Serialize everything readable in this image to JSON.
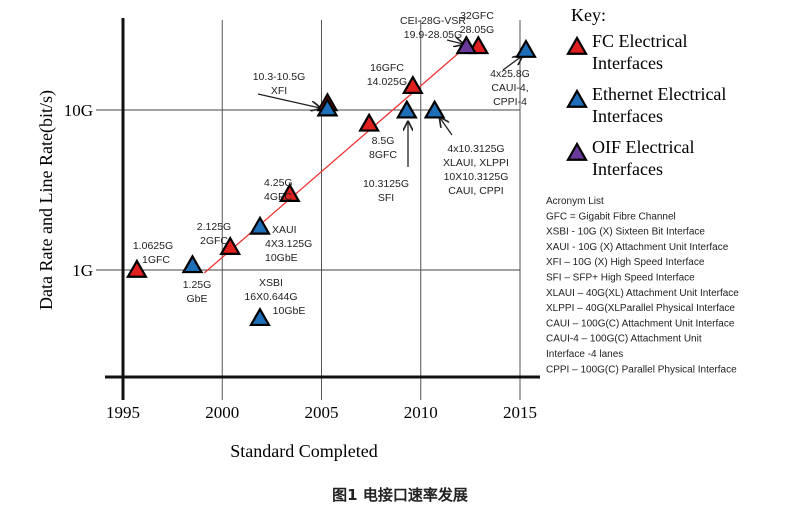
{
  "chart_data": {
    "type": "scatter",
    "title": "",
    "xlabel": "Standard Completed",
    "ylabel": "Data Rate and Line Rate(bit/s)",
    "x_scale": "linear",
    "y_scale": "log",
    "xlim": [
      1994,
      2016
    ],
    "ylim": [
      0.21,
      37
    ],
    "x_ticks": [
      1995,
      2000,
      2005,
      2010,
      2015
    ],
    "x_tick_labels": [
      "1995",
      "2000",
      "2005",
      "2010",
      "2015"
    ],
    "y_ticks": [
      1,
      10
    ],
    "y_tick_labels": [
      "1G",
      "10G"
    ],
    "grid": true,
    "colors": {
      "fc": "#e0201f",
      "ethernet": "#1f6fb8",
      "oif": "#6a3a9a",
      "trend": "#ee3333"
    },
    "series": [
      {
        "name": "FC Electrical Interfaces",
        "color_key": "fc",
        "points": [
          {
            "x": 1995.7,
            "y": 1.0
          },
          {
            "x": 2000.4,
            "y": 1.39
          },
          {
            "x": 2003.4,
            "y": 2.98
          },
          {
            "x": 2005.3,
            "y": 11.0
          },
          {
            "x": 2007.4,
            "y": 8.2
          },
          {
            "x": 2009.6,
            "y": 14.1
          },
          {
            "x": 2012.9,
            "y": 25
          }
        ]
      },
      {
        "name": "Ethernet Electrical Interfaces",
        "color_key": "ethernet",
        "points": [
          {
            "x": 1998.5,
            "y": 1.07
          },
          {
            "x": 2001.9,
            "y": 1.86
          },
          {
            "x": 2001.9,
            "y": 0.5
          },
          {
            "x": 2005.3,
            "y": 10.2
          },
          {
            "x": 2009.3,
            "y": 9.9
          },
          {
            "x": 2010.7,
            "y": 9.9
          },
          {
            "x": 2015.3,
            "y": 23.7
          }
        ]
      },
      {
        "name": "OIF Electrical Interfaces",
        "color_key": "oif",
        "points": [
          {
            "x": 2012.3,
            "y": 25
          }
        ]
      }
    ],
    "trend_line": [
      {
        "x": 1999.1,
        "y": 0.96
      },
      {
        "x": 2012.3,
        "y": 25
      }
    ],
    "annotations": [
      {
        "lines": [
          "1.0625G",
          "1GFC"
        ]
      },
      {
        "lines": [
          "1.25G",
          "GbE"
        ]
      },
      {
        "lines": [
          "2.125G",
          "2GFC"
        ]
      },
      {
        "lines": [
          "XAUI",
          "4X3.125G",
          "10GbE"
        ]
      },
      {
        "lines": [
          "4.25G",
          "4GFC"
        ]
      },
      {
        "lines": [
          "XSBI",
          "16X0.644G",
          "10GbE"
        ]
      },
      {
        "lines": [
          "10.3-10.5G",
          "XFI"
        ]
      },
      {
        "lines": [
          "8.5G",
          "8GFC"
        ]
      },
      {
        "lines": [
          "10.3125G",
          "SFI"
        ]
      },
      {
        "lines": [
          "16GFC",
          "14.025G"
        ]
      },
      {
        "lines": [
          "4x10.3125G",
          "XLAUI, XLPPI",
          "10X10.3125G",
          "CAUI, CPPI"
        ]
      },
      {
        "lines": [
          "CEI-28G-VSR",
          "19.9-28.05G"
        ]
      },
      {
        "lines": [
          "32GFC",
          "28.05G"
        ]
      },
      {
        "lines": [
          "4x25.8G",
          "CAUI-4,",
          "CPPI-4"
        ]
      }
    ],
    "legend": {
      "placement": "right",
      "title": "Key:",
      "entries": [
        {
          "lines": [
            "FC Electrical",
            "Interfaces"
          ],
          "color_key": "fc"
        },
        {
          "lines": [
            "Ethernet Electrical",
            "Interfaces"
          ],
          "color_key": "ethernet"
        },
        {
          "lines": [
            "OIF Electrical",
            "Interfaces"
          ],
          "color_key": "oif"
        }
      ]
    },
    "acronym_list": [
      "Acronym List",
      "GFC = Gigabit Fibre Channel",
      "XSBI - 10G (X) Sixteen Bit Interface",
      "XAUI - 10G (X) Attachment Unit Interface",
      "XFI – 10G (X) High Speed Interface",
      "SFI – SFP+ High Speed Interface",
      "XLAUI – 40G(XL) Attachment Unit Interface",
      "XLPPI – 40G(XLParallel Physical Interface",
      "CAUI – 100G(C) Attachment Unit Interface",
      "CAUI-4 – 100G(C) Attachment Unit",
      "Interface -4 lanes",
      "CPPI – 100G(C)  Parallel Physical Interface"
    ]
  },
  "caption": "图1   电接口速率发展"
}
